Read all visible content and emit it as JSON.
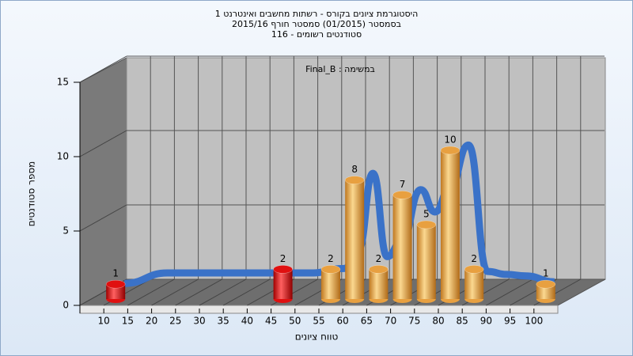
{
  "chart_data": {
    "type": "bar",
    "title": "היסטוגרמת ציונים בקורס - רשתות מחשבים ואינטרנט 1",
    "subtitle": "בסמסטר  (01/2015)  סמסטר חורף 2015/16",
    "subtitle2": "סטודנטים רשומים - 116",
    "annotation": "Final_B : במשימה",
    "x_label": "טווח ציונים",
    "y_label": "מספר סטודנטים",
    "x": [
      10,
      45,
      55,
      60,
      65,
      70,
      75,
      80,
      85,
      100
    ],
    "values": [
      1,
      2,
      2,
      8,
      2,
      7,
      5,
      10,
      2,
      1
    ],
    "colors": [
      "#e01010",
      "#e01010",
      "#e8a040",
      "#e8a040",
      "#e8a040",
      "#e8a040",
      "#e8a040",
      "#e8a040",
      "#e8a040",
      "#e8a040"
    ],
    "trend": {
      "color": "#3a72c8",
      "x": [
        6,
        15,
        25,
        35,
        45,
        52,
        55,
        58,
        61,
        64,
        68,
        71,
        74,
        78,
        82,
        86,
        90,
        96
      ],
      "values": [
        0.2,
        0.9,
        0.9,
        0.9,
        0.9,
        1.2,
        2.5,
        7.6,
        2,
        3,
        6.5,
        5,
        6.5,
        9.5,
        1,
        0.8,
        0.7,
        0.3
      ]
    },
    "xlim": [
      5,
      105
    ],
    "ylim": [
      0,
      15
    ],
    "xticks": [
      10,
      15,
      20,
      25,
      30,
      35,
      40,
      45,
      50,
      55,
      60,
      65,
      70,
      75,
      80,
      85,
      90,
      95,
      100
    ],
    "yticks": [
      0,
      5,
      10,
      15
    ],
    "grid": true
  }
}
